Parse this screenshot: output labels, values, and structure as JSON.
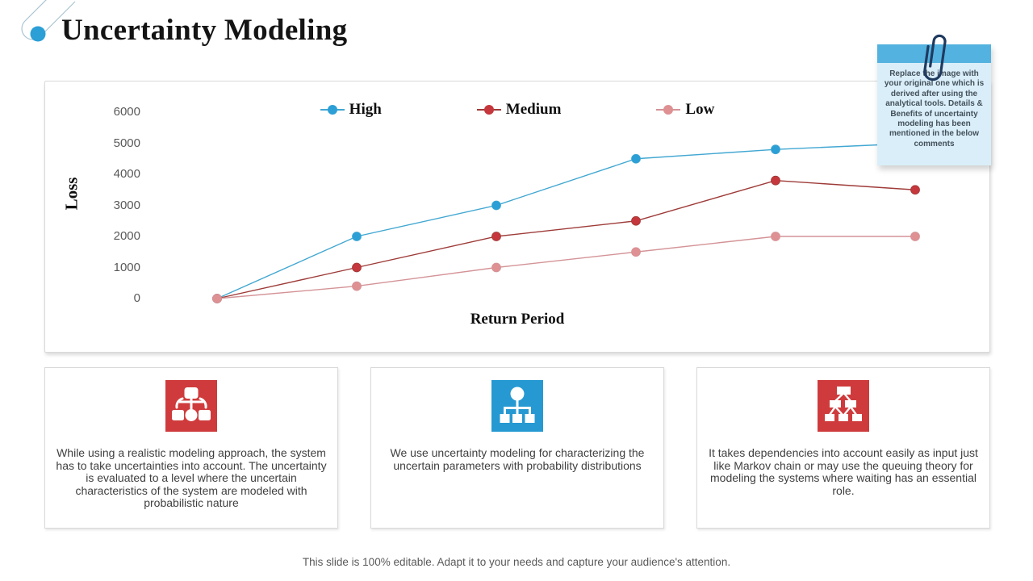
{
  "title": "Uncertainty Modeling",
  "chart_data": {
    "type": "line",
    "title": "",
    "xlabel": "Return Period",
    "ylabel": "Loss",
    "ylim": [
      0,
      6000
    ],
    "yticks": [
      0,
      1000,
      2000,
      3000,
      4000,
      5000,
      6000
    ],
    "x_tick_labels_visible": false,
    "grid": false,
    "legend_position": "top",
    "series": [
      {
        "name": "High",
        "color": "#2b9fd6",
        "line_color": "#41a7d2",
        "values": [
          0,
          2000,
          3000,
          4500,
          4800,
          5000
        ]
      },
      {
        "name": "Medium",
        "color": "#c5373c",
        "line_color": "#9e3b38",
        "values": [
          0,
          1000,
          2000,
          2500,
          3800,
          3500
        ]
      },
      {
        "name": "Low",
        "color": "#de9093",
        "line_color": "#d49397",
        "values": [
          0,
          400,
          1000,
          1500,
          2000,
          2000
        ]
      }
    ]
  },
  "note": {
    "text": "Replace the image  with your original one which is derived after using the analytical tools. Details & Benefits of uncertainty modeling has been mentioned in the below comments"
  },
  "cards": [
    {
      "icon": "org-structure-icon",
      "icon_bg": "#cf3b3c",
      "text": "While using a realistic modeling approach, the system has to take uncertainties into account. The uncertainty is evaluated to a level where the uncertain characteristics of the system are modeled with probabilistic nature"
    },
    {
      "icon": "hierarchy-icon",
      "icon_bg": "#2699d2",
      "text": "We use uncertainty modeling for characterizing the uncertain parameters with probability distributions"
    },
    {
      "icon": "tree-diagram-icon",
      "icon_bg": "#cf3b3c",
      "text": "It takes dependencies into account easily as input just like Markov chain or may use the queuing theory for modeling the systems where waiting has an essential role."
    }
  ],
  "footer": "This slide is 100% editable. Adapt it to your needs and capture your audience's attention.",
  "colors": {
    "note_header": "#53b2df",
    "note_body": "#d9eef9",
    "accent_blue": "#2b9fd6",
    "accent_red": "#cf3b3c"
  }
}
